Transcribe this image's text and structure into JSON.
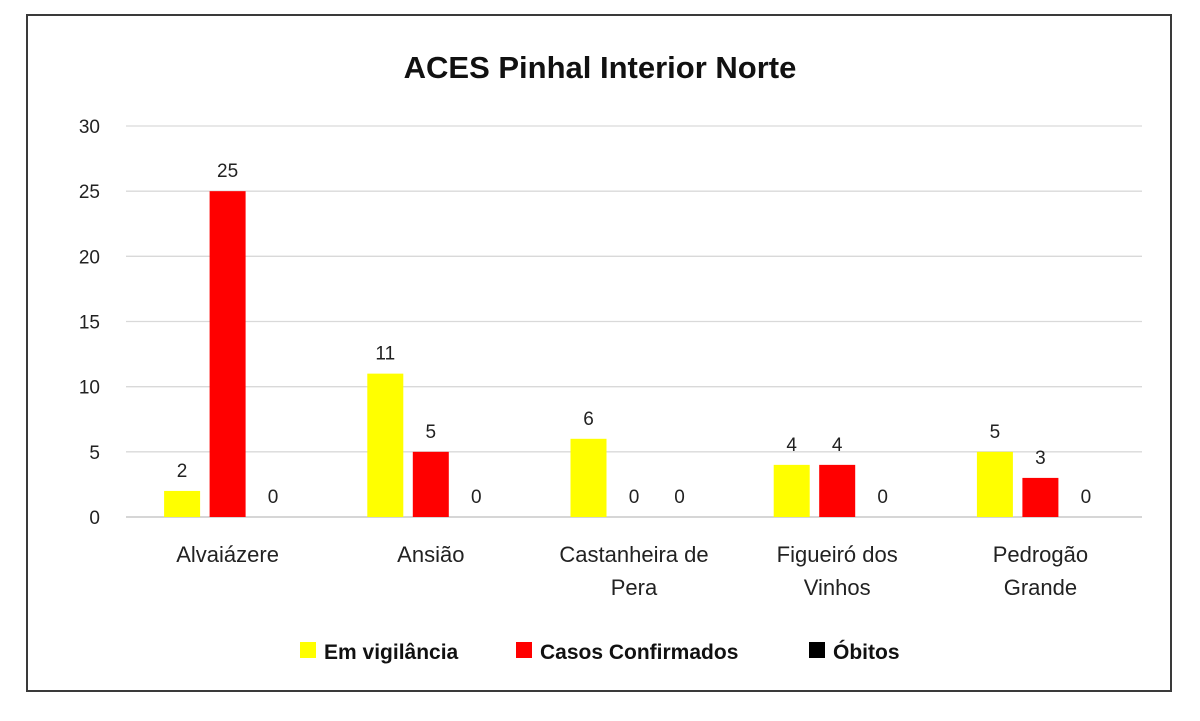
{
  "chart_data": {
    "type": "bar",
    "title": "ACES Pinhal Interior Norte",
    "xlabel": "",
    "ylabel": "",
    "ylim": [
      0,
      30
    ],
    "yticks": [
      0,
      5,
      10,
      15,
      20,
      25,
      30
    ],
    "grid": true,
    "legend_position": "bottom",
    "categories": [
      [
        "Alvaiázere"
      ],
      [
        "Ansião"
      ],
      [
        "Castanheira de",
        "Pera"
      ],
      [
        "Figueiró dos",
        "Vinhos"
      ],
      [
        "Pedrogão",
        "Grande"
      ]
    ],
    "series": [
      {
        "name": "Em vigilância",
        "color": "#ffff00",
        "values": [
          2,
          11,
          6,
          4,
          5
        ]
      },
      {
        "name": "Casos Confirmados",
        "color": "#ff0000",
        "values": [
          25,
          5,
          0,
          4,
          3
        ]
      },
      {
        "name": "Óbitos",
        "color": "#000000",
        "values": [
          0,
          0,
          0,
          0,
          0
        ]
      }
    ]
  }
}
